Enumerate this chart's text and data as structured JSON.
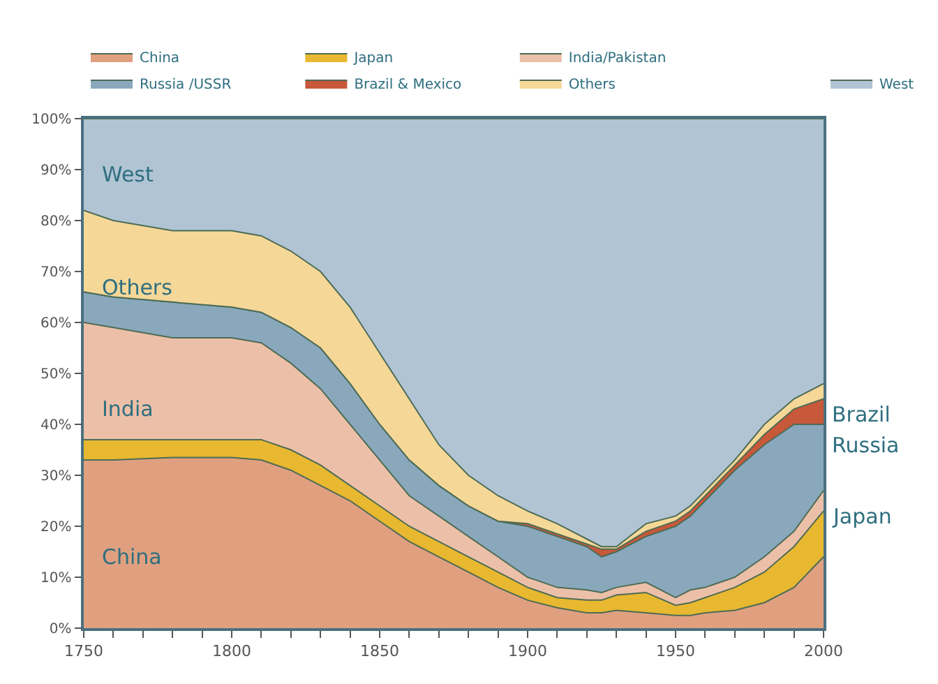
{
  "chart_data": {
    "type": "area",
    "stacked": true,
    "x": [
      1750,
      1760,
      1780,
      1800,
      1810,
      1820,
      1830,
      1840,
      1850,
      1860,
      1870,
      1880,
      1890,
      1900,
      1910,
      1920,
      1925,
      1930,
      1940,
      1950,
      1955,
      1960,
      1970,
      1980,
      1990,
      2000
    ],
    "series": [
      {
        "name": "China",
        "color": "#e0a080",
        "values": [
          33,
          33,
          33.5,
          33.5,
          33,
          31,
          28,
          25,
          21,
          17,
          14,
          11,
          8,
          5.5,
          4,
          3,
          3,
          3.5,
          3,
          2.5,
          2.5,
          3,
          3.5,
          5,
          8,
          14
        ]
      },
      {
        "name": "Japan",
        "color": "#e8b830",
        "values": [
          4,
          4,
          3.5,
          3.5,
          4,
          4,
          4,
          3,
          3,
          3,
          3,
          3,
          3,
          2.5,
          2,
          2.5,
          2.5,
          3,
          4,
          2,
          2.5,
          3,
          4.5,
          6,
          8,
          9
        ]
      },
      {
        "name": "India/Pakistan",
        "color": "#ecc0a8",
        "values": [
          23,
          22,
          20,
          20,
          19,
          17,
          15,
          12,
          9,
          6,
          5,
          4,
          3,
          2,
          2,
          2,
          1.5,
          1.5,
          2,
          1.5,
          2.5,
          2,
          2,
          3,
          3,
          4
        ]
      },
      {
        "name": "Russia /USSR",
        "color": "#8aa8bc",
        "values": [
          6,
          6,
          7,
          6,
          6,
          7,
          8,
          8,
          7,
          7,
          6,
          6,
          7,
          10,
          10,
          8.5,
          7,
          7,
          9,
          14,
          14.5,
          17,
          21,
          22,
          21,
          13
        ]
      },
      {
        "name": "Brazil & Mexico",
        "color": "#c8583a",
        "values": [
          0,
          0,
          0,
          0,
          0,
          0,
          0,
          0,
          0,
          0,
          0,
          0,
          0,
          0.5,
          0.5,
          0.5,
          1.5,
          0.5,
          1,
          1,
          1,
          1,
          1,
          2,
          3,
          5
        ]
      },
      {
        "name": "Others",
        "color": "#f5d898",
        "values": [
          16,
          15,
          14,
          15,
          15,
          15,
          15,
          15,
          14,
          12,
          8,
          6,
          5,
          2.5,
          2,
          1,
          0.5,
          0.5,
          1.5,
          1,
          1,
          1,
          1,
          2,
          2,
          3
        ]
      },
      {
        "name": "West",
        "color": "#b0c4d4",
        "values": [
          18,
          20,
          22,
          22,
          23,
          26,
          30,
          37,
          46,
          55,
          64,
          70,
          74,
          77,
          79.5,
          82.5,
          84,
          84,
          79.5,
          78,
          76,
          73,
          67,
          60,
          55,
          52
        ]
      }
    ],
    "xlim": [
      1750,
      2000
    ],
    "xticks": [
      1750,
      {
        "value": 1760,
        "label": null
      },
      {
        "value": 1770,
        "label": null
      },
      {
        "value": 1780,
        "label": null
      },
      {
        "value": 1790,
        "label": null
      },
      1800,
      {
        "value": 1810,
        "label": null
      },
      {
        "value": 1820,
        "label": null
      },
      {
        "value": 1830,
        "label": null
      },
      {
        "value": 1840,
        "label": null
      },
      1850,
      {
        "value": 1860,
        "label": null
      },
      {
        "value": 1870,
        "label": null
      },
      {
        "value": 1880,
        "label": null
      },
      {
        "value": 1890,
        "label": null
      },
      1900,
      {
        "value": 1910,
        "label": null
      },
      {
        "value": 1920,
        "label": null
      },
      {
        "value": 1930,
        "label": null
      },
      {
        "value": 1940,
        "label": null
      },
      1950,
      {
        "value": 1960,
        "label": null
      },
      {
        "value": 1970,
        "label": null
      },
      {
        "value": 1980,
        "label": null
      },
      {
        "value": 1990,
        "label": null
      },
      2000
    ],
    "ylim": [
      0,
      100
    ],
    "yticks": [
      {
        "value": 0,
        "label": "0%"
      },
      {
        "value": 10,
        "label": "10%"
      },
      {
        "value": 20,
        "label": "20%"
      },
      {
        "value": 30,
        "label": "30%"
      },
      {
        "value": 40,
        "label": "40%"
      },
      {
        "value": 50,
        "label": "50%"
      },
      {
        "value": 60,
        "label": "60%"
      },
      {
        "value": 70,
        "label": "70%"
      },
      {
        "value": 80,
        "label": "80%"
      },
      {
        "value": 90,
        "label": "90%"
      },
      {
        "value": 100,
        "label": "100%"
      }
    ],
    "legend": "top",
    "annotations": [
      "West",
      "Others",
      "India",
      "China",
      "Brazil",
      "Russia",
      "Japan"
    ]
  }
}
